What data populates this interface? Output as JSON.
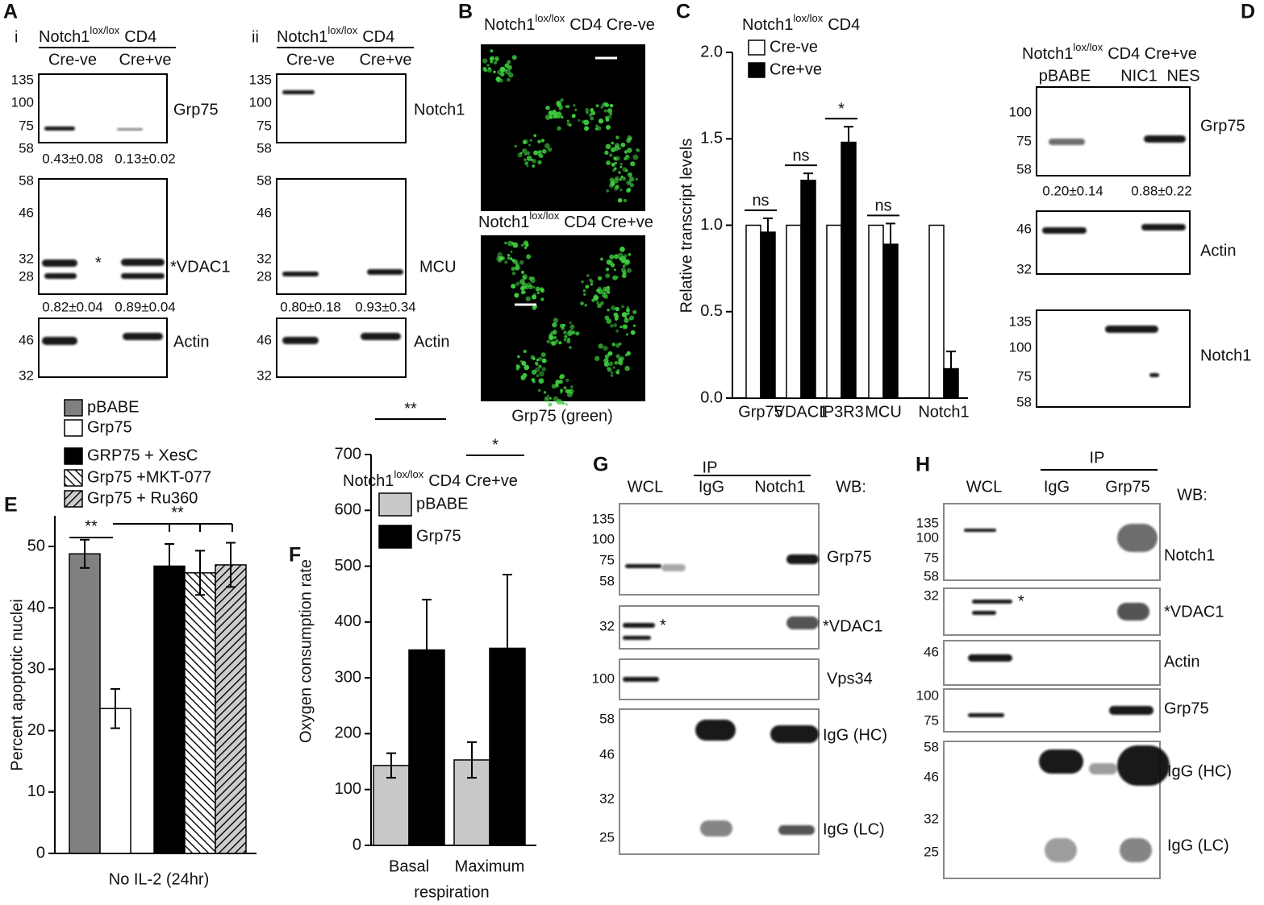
{
  "panels": [
    {
      "letter": "A",
      "sub": "i",
      "title": {
        "text": "Notch1",
        "sup": "lox/lox",
        "after": "CD4"
      },
      "lanes": [
        "Cre-ve",
        "Cre+ve"
      ],
      "blots": [
        {
          "labels": [
            "Grp75"
          ],
          "ladder": [
            135,
            100,
            75,
            58
          ],
          "quant": [
            "0.43±0.08",
            "0.13±0.02"
          ]
        },
        {
          "labels": [
            "*VDAC1"
          ],
          "ladder": [
            58,
            46,
            32,
            28
          ],
          "star": "*",
          "quant": [
            "0.82±0.04",
            "0.89±0.04"
          ]
        },
        {
          "labels": [
            "Actin"
          ],
          "ladder": [
            46,
            32
          ]
        }
      ]
    },
    {
      "sub": "ii",
      "title": {
        "text": "Notch1",
        "sup": "lox/lox",
        "after": "CD4"
      },
      "lanes": [
        "Cre-ve",
        "Cre+ve"
      ],
      "blots": [
        {
          "labels": [
            "Notch1"
          ],
          "ladder": [
            135,
            100,
            75,
            58
          ]
        },
        {
          "labels": [
            "MCU"
          ],
          "ladder": [
            58,
            46,
            32,
            28
          ],
          "quant": [
            "0.80±0.18",
            "0.93±0.34"
          ]
        },
        {
          "labels": [
            "Actin"
          ],
          "ladder": [
            46,
            32
          ]
        }
      ]
    },
    {
      "letter": "B",
      "images": [
        {
          "title": {
            "text": "Notch1",
            "sup": "lox/lox",
            "after": "CD4 Cre-ve"
          }
        },
        {
          "title": {
            "text": "Notch1",
            "sup": "lox/lox",
            "after": "CD4 Cre+ve"
          }
        }
      ],
      "caption": "Grp75 (green)"
    },
    {
      "letter": "D",
      "title": {
        "text": "Notch1",
        "sup": "lox/lox",
        "after": "CD4 Cre+ve"
      },
      "lanes": [
        "pBABE",
        "NIC1",
        "NES"
      ],
      "blots": [
        {
          "labels": [
            "Grp75"
          ],
          "ladder": [
            100,
            75,
            58
          ],
          "quant": [
            "0.20±0.14",
            "0.88±0.22"
          ]
        },
        {
          "labels": [
            "Actin"
          ],
          "ladder": [
            46,
            32
          ]
        },
        {
          "labels": [
            "Notch1"
          ],
          "ladder": [
            135,
            100,
            75,
            58
          ]
        }
      ]
    },
    {
      "letter": "G",
      "header": {
        "wcl": "WCL",
        "ip": "IP",
        "lanes": [
          "IgG",
          "Notch1"
        ],
        "wb": "WB:"
      },
      "blots": [
        {
          "labels": [
            "Grp75"
          ],
          "ladder": [
            135,
            100,
            75,
            58
          ]
        },
        {
          "labels": [
            "*VDAC1"
          ],
          "ladder": [
            32
          ],
          "star": "*"
        },
        {
          "labels": [
            "Vps34"
          ],
          "ladder": [
            100
          ]
        },
        {
          "labels": [
            "IgG (HC)",
            "IgG (LC)"
          ],
          "ladder": [
            58,
            46,
            32,
            25
          ]
        }
      ]
    },
    {
      "letter": "H",
      "header": {
        "wcl": "WCL",
        "ip": "IP",
        "lanes": [
          "IgG",
          "Grp75"
        ],
        "wb": "WB:"
      },
      "blots": [
        {
          "labels": [
            "Notch1"
          ],
          "ladder": [
            135,
            100,
            75,
            58
          ]
        },
        {
          "labels": [
            "*VDAC1"
          ],
          "ladder": [
            32
          ],
          "star": "*"
        },
        {
          "labels": [
            "Actin"
          ],
          "ladder": [
            46
          ]
        },
        {
          "labels": [
            "Grp75"
          ],
          "ladder": [
            100,
            75
          ]
        },
        {
          "labels": [
            "IgG (HC)",
            "IgG (LC)"
          ],
          "ladder": [
            58,
            46,
            32,
            25
          ]
        }
      ]
    }
  ],
  "chart_data": [
    {
      "type": "bar",
      "letter": "C",
      "title": {
        "text": "Notch1",
        "sup": "lox/lox",
        "after": "CD4"
      },
      "categories": [
        "Grp75",
        "VDAC1",
        "IP3R3",
        "MCU",
        "Notch1"
      ],
      "series": [
        {
          "name": "Cre-ve",
          "color": "#ffffff",
          "values": [
            1,
            1,
            1,
            1,
            1
          ]
        },
        {
          "name": "Cre+ve",
          "color": "#000000",
          "values": [
            0.96,
            1.26,
            1.48,
            0.89,
            0.17
          ],
          "errors": [
            0.08,
            0.04,
            0.09,
            0.12,
            0.1
          ]
        }
      ],
      "ylabel": "Relative transcript levels",
      "ylim": [
        0,
        2.0
      ],
      "yticks": [
        {
          "value": 0,
          "label": "0.0"
        },
        {
          "value": 0.5,
          "label": "0.5"
        },
        {
          "value": 1,
          "label": "1.0"
        },
        {
          "value": 1.5,
          "label": "1.5"
        },
        {
          "value": 2,
          "label": "2.0"
        }
      ],
      "annotations": [
        "ns",
        "ns",
        "*",
        "ns"
      ]
    },
    {
      "type": "bar",
      "letter": "E",
      "categories": [
        "No IL-2 (24hr)"
      ],
      "series": [
        {
          "name": "pBABE",
          "color": "#808080",
          "values": [
            48.8
          ],
          "errors": [
            2.3
          ]
        },
        {
          "name": "Grp75",
          "color": "#ffffff",
          "values": [
            23.6
          ],
          "errors": [
            3.2
          ]
        },
        {
          "name": "GRP75 + XesC",
          "color": "#000000",
          "values": [
            46.8
          ],
          "errors": [
            3.6
          ]
        },
        {
          "name": "Grp75 +MKT-077",
          "color": "#ffffff",
          "hatch": "\\",
          "values": [
            45.7
          ],
          "errors": [
            3.6
          ]
        },
        {
          "name": "Grp75 + Ru360",
          "color": "#cccccc",
          "hatch": "/",
          "values": [
            47.0
          ],
          "errors": [
            3.6
          ]
        }
      ],
      "ylabel": "Percent apoptotic nuclei",
      "ylim": [
        0,
        55
      ],
      "yticks": [
        0,
        10,
        20,
        30,
        40,
        50
      ],
      "annotations": [
        "**",
        "**"
      ]
    },
    {
      "type": "bar",
      "letter": "F",
      "title": {
        "text": "Notch1",
        "sup": "lox/lox",
        "after": "CD4 Cre+ve"
      },
      "categories": [
        "Basal",
        "Maximum"
      ],
      "xlabel": "respiration",
      "series": [
        {
          "name": "pBABE",
          "color": "#c8c8c8",
          "values": [
            143,
            153
          ],
          "errors": [
            22,
            32
          ]
        },
        {
          "name": "Grp75",
          "color": "#000000",
          "values": [
            350,
            353
          ],
          "errors": [
            90,
            132
          ]
        }
      ],
      "ylabel": "Oxygen consumption rate",
      "ylim": [
        0,
        700
      ],
      "yticks": [
        0,
        100,
        200,
        300,
        400,
        500,
        600,
        700
      ],
      "annotations": [
        "**",
        "*"
      ]
    }
  ]
}
